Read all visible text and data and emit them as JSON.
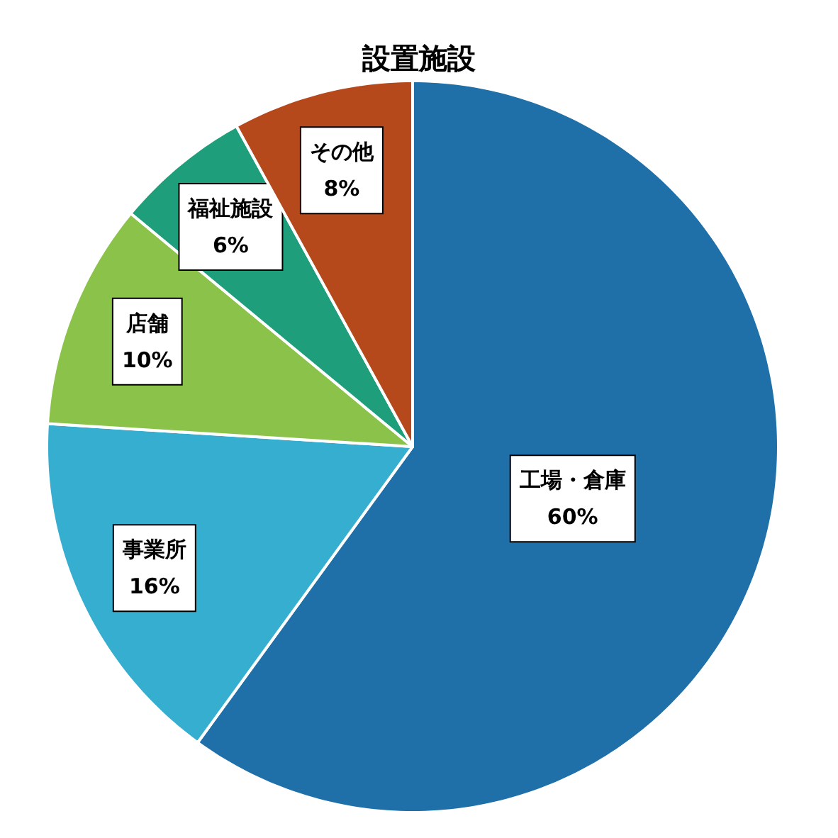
{
  "chart_data": {
    "type": "pie",
    "title": "設置施設",
    "categories": [
      "工場・倉庫",
      "事業所",
      "店舗",
      "福祉施設",
      "その他"
    ],
    "values": [
      60,
      16,
      10,
      6,
      8
    ],
    "value_labels": [
      "60%",
      "16%",
      "10%",
      "6%",
      "8%"
    ],
    "colors": [
      "#1f6fa8",
      "#35aed0",
      "#8bc34a",
      "#1e9e7a",
      "#b5491b"
    ]
  }
}
